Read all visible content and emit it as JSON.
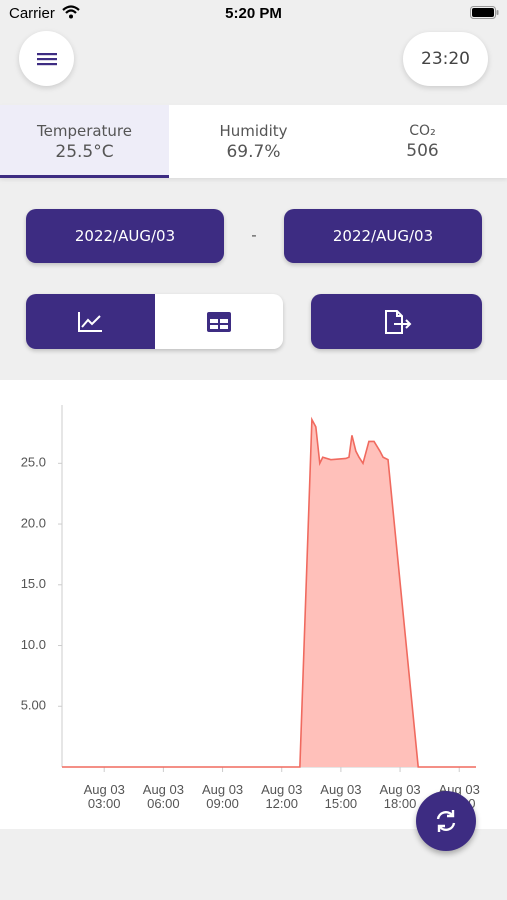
{
  "status_bar": {
    "carrier": "Carrier",
    "time": "5:20 PM"
  },
  "header": {
    "clock": "23:20"
  },
  "tabs": [
    {
      "label": "Temperature",
      "value": "25.5°C"
    },
    {
      "label": "Humidity",
      "value": "69.7%"
    },
    {
      "label": "CO₂",
      "value": "506"
    }
  ],
  "date_range": {
    "start": "2022/AUG/03",
    "separator": "-",
    "end": "2022/AUG/03"
  },
  "chart_data": {
    "type": "area",
    "x": [
      0.86,
      12.92,
      13.53,
      13.73,
      13.93,
      14.08,
      14.49,
      15.25,
      15.41,
      15.56,
      15.76,
      15.92,
      16.12,
      16.42,
      16.68,
      16.98,
      17.14,
      17.39,
      18.92,
      21.85
    ],
    "values": [
      0,
      0,
      28.6,
      28.0,
      25.0,
      25.5,
      25.3,
      25.4,
      25.5,
      27.3,
      26.0,
      25.5,
      25.0,
      26.8,
      26.8,
      26.0,
      25.5,
      25.3,
      0,
      0
    ],
    "color": "#f06a5f",
    "fill_color": "#ffc0ba",
    "xlim": [
      0.86,
      21.85
    ],
    "xticks": [
      {
        "value": 3,
        "label": "Aug 03\n03:00"
      },
      {
        "value": 6,
        "label": "Aug 03\n06:00"
      },
      {
        "value": 9,
        "label": "Aug 03\n09:00"
      },
      {
        "value": 12,
        "label": "Aug 03\n12:00"
      },
      {
        "value": 15,
        "label": "Aug 03\n15:00"
      },
      {
        "value": 18,
        "label": "Aug 03\n18:00"
      },
      {
        "value": 21,
        "label": "Aug 03\n21:00"
      }
    ],
    "ylim": [
      0,
      29.8
    ],
    "yticks": [
      {
        "value": 5,
        "label": "5.00"
      },
      {
        "value": 10,
        "label": "10.0"
      },
      {
        "value": 15,
        "label": "15.0"
      },
      {
        "value": 20,
        "label": "20.0"
      },
      {
        "value": 25,
        "label": "25.0"
      }
    ]
  }
}
